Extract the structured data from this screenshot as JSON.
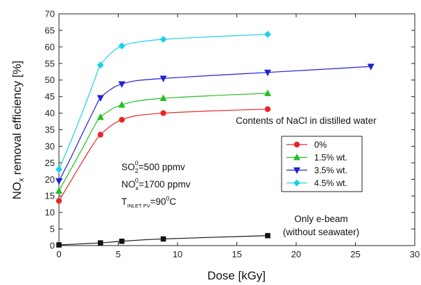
{
  "chart_data": {
    "type": "scatter",
    "xlabel": "Dose [kGy]",
    "ylabel": "NOx removal efficiency [%]",
    "xlim": [
      0,
      30
    ],
    "ylim": [
      0,
      70
    ],
    "xticks": [
      0,
      5,
      10,
      15,
      20,
      25,
      30
    ],
    "yticks": [
      0,
      5,
      10,
      15,
      20,
      25,
      30,
      35,
      40,
      45,
      50,
      55,
      60,
      65,
      70
    ],
    "grid": false,
    "legend_title": "Contents of NaCl in distilled water",
    "legend_position": "right",
    "series": [
      {
        "name": "0%",
        "color": "#e8262a",
        "marker": "circle",
        "x": [
          0,
          3.5,
          5.3,
          8.8,
          17.6
        ],
        "y": [
          13.5,
          33.5,
          38,
          40,
          41.2
        ],
        "curve": [
          [
            0,
            13.5
          ],
          [
            1,
            19.5
          ],
          [
            2,
            25.5
          ],
          [
            3,
            31.2
          ],
          [
            3.5,
            33.5
          ],
          [
            4.5,
            36.5
          ],
          [
            5.3,
            38
          ],
          [
            6.5,
            39.2
          ],
          [
            8.8,
            40
          ],
          [
            13,
            40.7
          ],
          [
            17.6,
            41.2
          ]
        ]
      },
      {
        "name": "1.5% wt.",
        "color": "#1fc01f",
        "marker": "triangle-up",
        "x": [
          0,
          3.5,
          5.3,
          8.8,
          17.6
        ],
        "y": [
          16.5,
          38.8,
          42.5,
          44.5,
          46
        ],
        "curve": [
          [
            0,
            16.5
          ],
          [
            1,
            23
          ],
          [
            2,
            29.5
          ],
          [
            3,
            36.2
          ],
          [
            3.5,
            38.8
          ],
          [
            4.5,
            41.3
          ],
          [
            5.3,
            42.5
          ],
          [
            6.5,
            43.6
          ],
          [
            8.8,
            44.5
          ],
          [
            13,
            45.3
          ],
          [
            17.6,
            46
          ]
        ]
      },
      {
        "name": "3.5% wt.",
        "color": "#2020d8",
        "marker": "triangle-down",
        "x": [
          0,
          3.5,
          5.3,
          8.8,
          17.6,
          26.3
        ],
        "y": [
          19.5,
          44.6,
          48.8,
          50.5,
          52.3,
          54.1
        ],
        "curve": [
          [
            0,
            19.5
          ],
          [
            1,
            26.5
          ],
          [
            2,
            34
          ],
          [
            3,
            41.3
          ],
          [
            3.5,
            44.6
          ],
          [
            4.5,
            47.5
          ],
          [
            5.3,
            48.8
          ],
          [
            6.5,
            49.8
          ],
          [
            8.8,
            50.5
          ],
          [
            13,
            51.4
          ],
          [
            17.6,
            52.3
          ],
          [
            22,
            53.2
          ],
          [
            26.3,
            54.1
          ]
        ]
      },
      {
        "name": "4.5% wt.",
        "color": "#19d2e6",
        "marker": "diamond",
        "x": [
          0,
          3.5,
          5.3,
          8.8,
          17.6
        ],
        "y": [
          23,
          54.5,
          60.3,
          62.3,
          63.8
        ],
        "curve": [
          [
            0,
            23
          ],
          [
            1,
            31.5
          ],
          [
            2,
            40.5
          ],
          [
            3,
            50
          ],
          [
            3.5,
            54.5
          ],
          [
            4.5,
            58.5
          ],
          [
            5.3,
            60.3
          ],
          [
            6.5,
            61.4
          ],
          [
            8.8,
            62.3
          ],
          [
            13,
            63.1
          ],
          [
            17.6,
            63.8
          ]
        ]
      },
      {
        "name": "Only e-beam (without seawater)",
        "color": "#111111",
        "marker": "square",
        "x": [
          0,
          3.5,
          5.3,
          8.8,
          17.6
        ],
        "y": [
          0.2,
          0.8,
          1.3,
          2,
          3
        ],
        "curve": [
          [
            0,
            0.2
          ],
          [
            3.5,
            0.8
          ],
          [
            5.3,
            1.3
          ],
          [
            8.8,
            2
          ],
          [
            17.6,
            3
          ]
        ]
      }
    ],
    "annotations": {
      "so2_main": "SO",
      "so2_sub": "2",
      "so2_sup": "0",
      "so2_rest": "=500 ppmv",
      "nox_main": "NO",
      "nox_sub": "x",
      "nox_sup": "0",
      "nox_rest": "=1700 ppmv",
      "t_main": "T",
      "t_sub": "INLET PV",
      "t_rest1": "=90",
      "t_sup": "0",
      "t_rest2": "C",
      "ebeam_line1": "Only e-beam",
      "ebeam_line2": "(without seawater)"
    }
  }
}
